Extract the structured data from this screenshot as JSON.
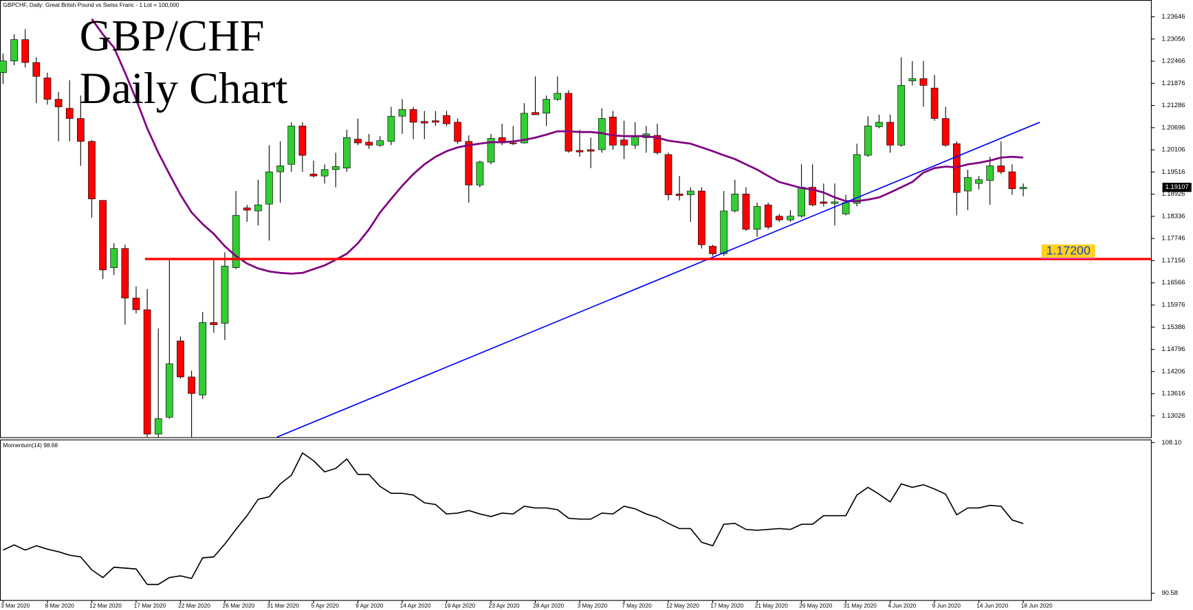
{
  "chart_data": [
    {
      "type": "candlestick",
      "header": "GBPCHF, Daily:  Great Britsh Pound vs Swiss Franc - 1 Lot = 100,000",
      "title": "GBP/CHF",
      "subtitle": "Daily Chart",
      "categories": [
        "3 Mar 2020",
        null,
        null,
        null,
        "8 Mar 2020",
        null,
        null,
        null,
        "12 Mar 2020",
        null,
        null,
        null,
        "17 Mar 2020",
        null,
        null,
        null,
        "22 Mar 2020",
        null,
        null,
        null,
        "26 Mar 2020",
        null,
        null,
        null,
        "31 Mar 2020",
        null,
        null,
        null,
        "5 Apr 2020",
        null,
        null,
        null,
        "9 Apr 2020",
        null,
        null,
        null,
        "14 Apr 2020",
        null,
        null,
        null,
        "19 Apr 2020",
        null,
        null,
        null,
        "23 Apr 2020",
        null,
        null,
        null,
        "28 Apr 2020",
        null,
        null,
        null,
        "3 May 2020",
        null,
        null,
        null,
        "7 May 2020",
        null,
        null,
        null,
        "12 May 2020",
        null,
        null,
        null,
        "17 May 2020",
        null,
        null,
        null,
        "21 May 2020",
        null,
        null,
        null,
        "26 May 2020",
        null,
        null,
        null,
        "31 May 2020",
        null,
        null,
        null,
        "4 Jun 2020",
        null,
        null,
        null,
        "9 Jun 2020",
        null,
        null,
        null,
        "14 Jun 2020",
        null,
        null,
        null,
        "18 Jun 2020"
      ],
      "open": [
        1.2216,
        1.2247,
        1.2304,
        1.2243,
        1.2202,
        1.2145,
        1.2121,
        1.2094,
        1.2033,
        1.1876,
        1.1697,
        1.1748,
        1.1616,
        1.1585,
        1.1254,
        1.1299,
        1.1502,
        1.1406,
        1.1358,
        1.1551,
        1.1549,
        1.1697,
        1.1856,
        1.1848,
        1.1866,
        1.1952,
        1.1972,
        1.2074,
        1.1946,
        1.1941,
        1.1958,
        1.1962,
        1.2039,
        1.2031,
        1.2023,
        1.2033,
        1.21,
        1.2118,
        1.2086,
        1.2088,
        1.2102,
        1.2084,
        1.2033,
        1.1917,
        1.1978,
        1.2043,
        1.2029,
        1.2029,
        1.211,
        1.2108,
        1.2145,
        1.2161,
        1.2009,
        1.2011,
        1.2011,
        1.2098,
        1.2037,
        1.2023,
        1.2043,
        1.2049,
        1.1998,
        1.1893,
        1.1891,
        1.1901,
        1.1754,
        1.1734,
        1.1848,
        1.1893,
        1.1799,
        1.1864,
        1.1834,
        1.1824,
        1.1834,
        1.1911,
        1.1872,
        1.1868,
        1.184,
        1.1868,
        1.1996,
        1.2072,
        1.2084,
        1.2023,
        1.2194,
        1.22,
        1.2175,
        1.2094,
        1.2027,
        1.1901,
        1.1921,
        1.1929,
        1.1968,
        1.1952,
        1.1907
      ],
      "high": [
        1.2267,
        1.2318,
        1.2332,
        1.2257,
        1.2216,
        1.2165,
        1.2196,
        1.2155,
        1.2037,
        1.1876,
        1.1762,
        1.1758,
        1.1647,
        1.164,
        1.1535,
        1.1718,
        1.1514,
        1.1423,
        1.1579,
        1.1718,
        1.1738,
        1.1901,
        1.1864,
        1.1931,
        1.2023,
        1.2033,
        1.2084,
        1.2084,
        1.1982,
        1.1972,
        1.2003,
        1.2064,
        1.2094,
        1.2053,
        1.2047,
        1.2125,
        1.2145,
        1.2125,
        1.2114,
        1.2114,
        1.2114,
        1.2094,
        1.2049,
        1.1982,
        1.2053,
        1.208,
        1.2074,
        1.2135,
        1.2206,
        1.2155,
        1.2206,
        1.2169,
        1.2064,
        1.2043,
        1.2121,
        1.2114,
        1.2088,
        1.2084,
        1.2074,
        1.208,
        1.2003,
        1.1941,
        1.1911,
        1.1911,
        1.1758,
        1.1901,
        1.1931,
        1.1911,
        1.187,
        1.187,
        1.184,
        1.185,
        1.1972,
        1.1972,
        1.1921,
        1.1921,
        1.1891,
        1.2027,
        1.21,
        1.2104,
        1.2104,
        1.2257,
        1.2247,
        1.2247,
        1.221,
        1.2125,
        1.2033,
        1.1958,
        1.1941,
        1.1992,
        1.2033,
        1.1972,
        1.1921
      ],
      "low": [
        1.2186,
        1.2236,
        1.223,
        1.2135,
        1.2131,
        1.2033,
        1.2033,
        1.1968,
        1.183,
        1.1667,
        1.1677,
        1.1545,
        1.1575,
        1.1246,
        1.1246,
        1.1295,
        1.1402,
        1.1246,
        1.1347,
        1.1524,
        1.1504,
        1.1693,
        1.1819,
        1.1809,
        1.1769,
        1.187,
        1.1952,
        1.1952,
        1.1937,
        1.1921,
        1.1911,
        1.1952,
        1.2023,
        1.2013,
        1.2019,
        1.2023,
        1.2053,
        1.2039,
        1.2039,
        1.2074,
        1.2074,
        1.2027,
        1.187,
        1.1911,
        1.1972,
        1.2023,
        1.2023,
        1.2027,
        1.2104,
        1.2074,
        1.2141,
        1.2003,
        1.1992,
        1.1962,
        1.2003,
        1.2011,
        1.1986,
        1.2013,
        1.2003,
        1.1998,
        1.1876,
        1.1876,
        1.1819,
        1.1748,
        1.1728,
        1.1728,
        1.1844,
        1.1795,
        1.1779,
        1.1799,
        1.1819,
        1.1819,
        1.183,
        1.186,
        1.186,
        1.1809,
        1.1836,
        1.186,
        1.1992,
        1.2068,
        1.2003,
        1.2019,
        1.2182,
        1.2125,
        1.2088,
        1.2019,
        1.1836,
        1.185,
        1.1905,
        1.1864,
        1.1946,
        1.1891,
        1.1887
      ],
      "close": [
        1.2247,
        1.2304,
        1.2243,
        1.2206,
        1.2145,
        1.2125,
        1.2094,
        1.2033,
        1.188,
        1.1691,
        1.1748,
        1.1616,
        1.1585,
        1.1254,
        1.1295,
        1.1441,
        1.1406,
        1.1362,
        1.1551,
        1.1545,
        1.1701,
        1.1836,
        1.185,
        1.1864,
        1.1952,
        1.1968,
        1.2074,
        1.1996,
        1.1941,
        1.1958,
        1.1966,
        1.2043,
        1.2029,
        1.2023,
        1.2035,
        1.21,
        1.2118,
        1.2084,
        1.2082,
        1.2084,
        1.208,
        1.2033,
        1.1917,
        1.1978,
        1.2041,
        1.2029,
        1.2027,
        1.2108,
        1.2104,
        1.2145,
        1.2161,
        1.2007,
        1.2005,
        1.2007,
        1.2094,
        1.2023,
        1.2023,
        1.2047,
        1.2053,
        1.2003,
        1.1891,
        1.1889,
        1.1901,
        1.1758,
        1.1734,
        1.1848,
        1.1893,
        1.1799,
        1.186,
        1.1805,
        1.1824,
        1.1834,
        1.1911,
        1.1864,
        1.1868,
        1.1872,
        1.187,
        1.1998,
        1.2074,
        1.2084,
        1.2023,
        1.2182,
        1.22,
        1.2182,
        1.2094,
        1.2023,
        1.1897,
        1.1937,
        1.1931,
        1.1968,
        1.1952,
        1.1907,
        1.19107
      ],
      "up_color": "#32cd32",
      "down_color": "#ff0000",
      "moving_average": {
        "color": "#800080",
        "values": [
          null,
          null,
          null,
          null,
          null,
          null,
          null,
          null,
          1.2359,
          1.2318,
          1.2283,
          1.2216,
          1.2145,
          1.2068,
          1.2003,
          1.1946,
          1.1891,
          1.1844,
          1.1813,
          1.1787,
          1.1754,
          1.1728,
          1.1708,
          1.1695,
          1.1687,
          1.1683,
          1.1681,
          1.1683,
          1.1693,
          1.1703,
          1.1718,
          1.1734,
          1.1762,
          1.1799,
          1.1844,
          1.188,
          1.1915,
          1.1946,
          1.1972,
          1.1992,
          1.2007,
          1.2017,
          1.2023,
          1.2027,
          1.2031,
          1.2031,
          1.2033,
          1.2037,
          1.2043,
          1.2051,
          1.206,
          1.206,
          1.2058,
          1.2058,
          1.2055,
          1.2049,
          1.2047,
          1.2047,
          1.2047,
          1.2043,
          1.2035,
          1.2031,
          1.2027,
          1.2017,
          1.2007,
          1.1996,
          1.1986,
          1.1972,
          1.1958,
          1.1941,
          1.1925,
          1.1917,
          1.1909,
          1.1905,
          1.1897,
          1.1884,
          1.1874,
          1.1874,
          1.1878,
          1.1884,
          1.1897,
          1.1911,
          1.1925,
          1.195,
          1.1962,
          1.1966,
          1.1964,
          1.1972,
          1.1976,
          1.1982,
          1.199,
          1.1992,
          1.199
        ]
      },
      "trendline": {
        "color": "#0000ff",
        "x": [
          24.7,
          93.5
        ],
        "y": [
          1.1246,
          1.2084
        ]
      },
      "hline": {
        "value": 1.172,
        "label": "1.17200",
        "start": 12.8,
        "color": "#ff0000"
      },
      "current_price": 1.19107,
      "ylim": [
        1.12456,
        1.23992
      ],
      "yticks": [
        1.23646,
        1.23056,
        1.22466,
        1.21876,
        1.21286,
        1.20696,
        1.20106,
        1.19516,
        1.18926,
        1.18336,
        1.17746,
        1.17156,
        1.16566,
        1.15976,
        1.15386,
        1.14796,
        1.14206,
        1.13616,
        1.13026
      ]
    },
    {
      "type": "line",
      "title": "Momentum(14) 98.68",
      "color": "#000000",
      "values": [
        95.6,
        96.2,
        95.6,
        96.1,
        95.7,
        95.4,
        95.0,
        94.8,
        93.3,
        92.4,
        93.6,
        93.5,
        93.4,
        91.6,
        91.6,
        92.4,
        92.6,
        92.3,
        94.7,
        94.8,
        96.3,
        98.0,
        99.6,
        101.5,
        101.8,
        103.3,
        104.3,
        106.9,
        106.0,
        104.7,
        105.1,
        106.2,
        104.4,
        104.4,
        103.0,
        102.2,
        102.2,
        102.0,
        101.1,
        100.9,
        99.8,
        99.9,
        100.2,
        99.8,
        99.5,
        99.9,
        99.8,
        100.7,
        100.5,
        100.5,
        100.3,
        99.3,
        99.2,
        99.2,
        99.9,
        99.8,
        100.7,
        100.4,
        99.8,
        99.4,
        98.7,
        98.1,
        98.1,
        96.5,
        96.1,
        98.6,
        98.7,
        98.0,
        97.9,
        98.0,
        98.1,
        98.0,
        98.6,
        98.6,
        99.6,
        99.6,
        99.6,
        102.0,
        102.9,
        102.1,
        101.2,
        103.3,
        102.9,
        103.2,
        102.7,
        102.1,
        99.7,
        100.5,
        100.5,
        100.8,
        100.7,
        99.1,
        98.68
      ],
      "ylim": [
        89.78,
        108.46
      ],
      "yticks": [
        {
          "value": 108.1,
          "label": "108.10"
        },
        90.58
      ]
    }
  ]
}
